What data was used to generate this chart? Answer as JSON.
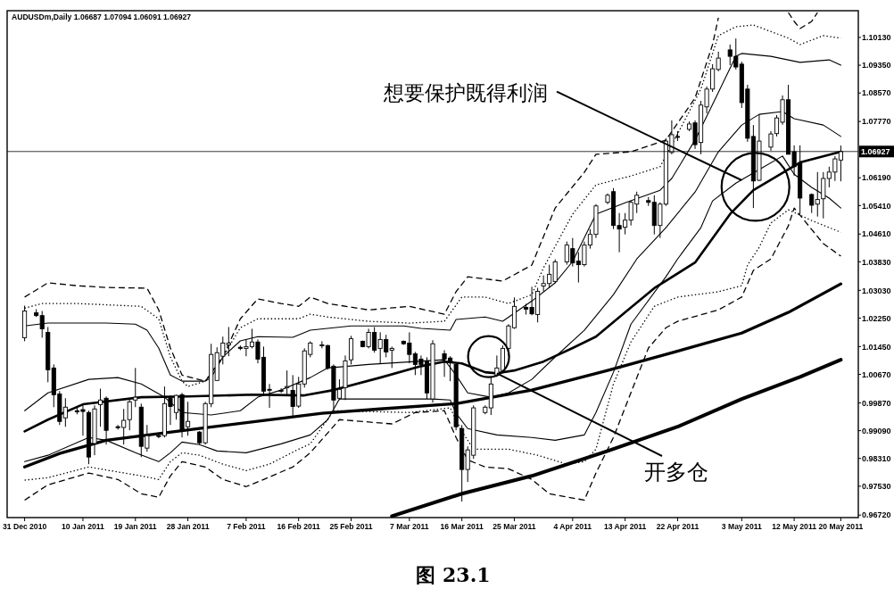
{
  "chart_data": {
    "type": "candlestick",
    "title": "AUDUSDm,Daily 1.06687 1.07094 1.06091 1.06927",
    "color": "#000000",
    "x": [
      "2010-12-31",
      "2011-01-02",
      "2011-01-03",
      "2011-01-04",
      "2011-01-05",
      "2011-01-06",
      "2011-01-07",
      "2011-01-09",
      "2011-01-10",
      "2011-01-11",
      "2011-01-12",
      "2011-01-13",
      "2011-01-14",
      "2011-01-16",
      "2011-01-17",
      "2011-01-18",
      "2011-01-19",
      "2011-01-20",
      "2011-01-21",
      "2011-01-23",
      "2011-01-24",
      "2011-01-25",
      "2011-01-26",
      "2011-01-27",
      "2011-01-28",
      "2011-01-30",
      "2011-01-31",
      "2011-02-01",
      "2011-02-02",
      "2011-02-03",
      "2011-02-04",
      "2011-02-06",
      "2011-02-07",
      "2011-02-08",
      "2011-02-09",
      "2011-02-10",
      "2011-02-11",
      "2011-02-13",
      "2011-02-14",
      "2011-02-15",
      "2011-02-16",
      "2011-02-17",
      "2011-02-18",
      "2011-02-20",
      "2011-02-21",
      "2011-02-22",
      "2011-02-23",
      "2011-02-24",
      "2011-02-25",
      "2011-02-27",
      "2011-02-28",
      "2011-03-01",
      "2011-03-02",
      "2011-03-03",
      "2011-03-04",
      "2011-03-06",
      "2011-03-07",
      "2011-03-08",
      "2011-03-09",
      "2011-03-10",
      "2011-03-11",
      "2011-03-13",
      "2011-03-14",
      "2011-03-15",
      "2011-03-16",
      "2011-03-17",
      "2011-03-18",
      "2011-03-20",
      "2011-03-21",
      "2011-03-22",
      "2011-03-23",
      "2011-03-24",
      "2011-03-25",
      "2011-03-27",
      "2011-03-28",
      "2011-03-29",
      "2011-03-30",
      "2011-03-31",
      "2011-04-01",
      "2011-04-03",
      "2011-04-04",
      "2011-04-05",
      "2011-04-06",
      "2011-04-07",
      "2011-04-08",
      "2011-04-10",
      "2011-04-11",
      "2011-04-12",
      "2011-04-13",
      "2011-04-14",
      "2011-04-15",
      "2011-04-17",
      "2011-04-18",
      "2011-04-19",
      "2011-04-20",
      "2011-04-21",
      "2011-04-22",
      "2011-04-24",
      "2011-04-25",
      "2011-04-26",
      "2011-04-27",
      "2011-04-28",
      "2011-04-29",
      "2011-05-01",
      "2011-05-02",
      "2011-05-03",
      "2011-05-04",
      "2011-05-05",
      "2011-05-06",
      "2011-05-08",
      "2011-05-09",
      "2011-05-10",
      "2011-05-11",
      "2011-05-12",
      "2011-05-13",
      "2011-05-15",
      "2011-05-16",
      "2011-05-17",
      "2011-05-18",
      "2011-05-19",
      "2011-05-20"
    ],
    "ohlc": [
      [
        1.017,
        1.026,
        1.016,
        1.0245
      ],
      [
        1.024,
        1.025,
        1.0228,
        1.0232
      ],
      [
        1.0232,
        1.0245,
        1.017,
        1.0195
      ],
      [
        1.0185,
        1.02,
        1.0045,
        1.008
      ],
      [
        1.0085,
        1.0095,
        0.9975,
        1.001
      ],
      [
        1.0012,
        1.002,
        0.9925,
        0.9935
      ],
      [
        0.9945,
        1.0,
        0.992,
        0.9975
      ],
      [
        0.9965,
        0.9975,
        0.9955,
        0.9962
      ],
      [
        0.9968,
        0.9985,
        0.9895,
        0.9963
      ],
      [
        0.996,
        0.9965,
        0.9815,
        0.9835
      ],
      [
        0.9873,
        0.998,
        0.984,
        0.997
      ],
      [
        0.9982,
        1.0027,
        0.992,
        0.9995
      ],
      [
        1.0,
        1.0005,
        0.987,
        0.991
      ],
      [
        0.992,
        0.9925,
        0.9912,
        0.9918
      ],
      [
        0.9918,
        0.997,
        0.987,
        0.9938
      ],
      [
        0.994,
        1.0,
        0.991,
        0.999
      ],
      [
        0.9995,
        1.0085,
        0.9975,
        1.0003
      ],
      [
        0.9975,
        0.9985,
        0.9835,
        0.9865
      ],
      [
        0.986,
        0.9925,
        0.985,
        0.9895
      ],
      [
        0.9895,
        0.99,
        0.9888,
        0.9893
      ],
      [
        0.9895,
        1.0033,
        0.989,
        0.9985
      ],
      [
        1.0,
        1.0008,
        0.9925,
        0.9977
      ],
      [
        0.996,
        1.001,
        0.994,
        1.0008
      ],
      [
        1.001,
        1.0015,
        0.989,
        0.9908
      ],
      [
        0.992,
        0.999,
        0.9895,
        0.9935
      ],
      [
        0.9905,
        0.9908,
        0.987,
        0.9875
      ],
      [
        0.9875,
        0.999,
        0.987,
        0.9985
      ],
      [
        0.9985,
        1.0153,
        0.9975,
        1.0123
      ],
      [
        1.005,
        1.0143,
        1.005,
        1.0128
      ],
      [
        1.0118,
        1.0173,
        1.0095,
        1.0155
      ],
      [
        1.015,
        1.02,
        1.0118,
        1.0155
      ],
      [
        1.0143,
        1.0148,
        1.0135,
        1.014
      ],
      [
        1.014,
        1.0165,
        1.0118,
        1.0145
      ],
      [
        1.0145,
        1.0195,
        1.014,
        1.0158
      ],
      [
        1.0158,
        1.0165,
        1.0098,
        1.011
      ],
      [
        1.0115,
        1.0145,
        1.001,
        1.002
      ],
      [
        1.0025,
        1.004,
        0.9973,
        1.0023
      ],
      [
        1.002,
        1.0028,
        1.0015,
        1.0022
      ],
      [
        1.003,
        1.0078,
        1.001,
        1.0033
      ],
      [
        1.0022,
        1.0065,
        0.995,
        0.9977
      ],
      [
        0.9978,
        1.006,
        0.9973,
        1.004
      ],
      [
        1.004,
        1.014,
        1.003,
        1.0133
      ],
      [
        1.0123,
        1.016,
        1.0115,
        1.0155
      ],
      [
        1.0148,
        1.016,
        1.014,
        1.015
      ],
      [
        1.0148,
        1.015,
        1.008,
        1.0085
      ],
      [
        1.009,
        1.0095,
        0.997,
        0.9995
      ],
      [
        1.0,
        1.0053,
        0.9995,
        1.0025
      ],
      [
        1.003,
        1.012,
        0.9995,
        1.0105
      ],
      [
        1.0108,
        1.0175,
        1.0095,
        1.0167
      ],
      [
        1.016,
        1.0162,
        1.0143,
        1.0145
      ],
      [
        1.0145,
        1.0195,
        1.014,
        1.0185
      ],
      [
        1.0185,
        1.02,
        1.0128,
        1.0135
      ],
      [
        1.014,
        1.0185,
        1.0098,
        1.0165
      ],
      [
        1.0165,
        1.0178,
        1.0115,
        1.013
      ],
      [
        1.0135,
        1.0145,
        1.0085,
        1.014
      ],
      [
        1.016,
        1.0162,
        1.015,
        1.0153
      ],
      [
        1.0155,
        1.0185,
        1.0098,
        1.0123
      ],
      [
        1.0125,
        1.013,
        1.0065,
        1.0095
      ],
      [
        1.011,
        1.012,
        1.0065,
        1.0095
      ],
      [
        1.0105,
        1.0115,
        0.9998,
        1.0015
      ],
      [
        0.9998,
        1.0163,
        0.9988,
        1.0153
      ],
      [
        1.0125,
        1.0135,
        1.006,
        1.011
      ],
      [
        1.0113,
        1.0118,
        1.0048,
        1.01
      ],
      [
        1.0095,
        1.01,
        0.991,
        0.992
      ],
      [
        0.9915,
        0.9925,
        0.971,
        0.98
      ],
      [
        0.98,
        0.9865,
        0.9765,
        0.9855
      ],
      [
        0.984,
        0.998,
        0.983,
        0.9973
      ],
      [
        0.996,
        0.998,
        0.9955,
        0.9975
      ],
      [
        0.9973,
        1.006,
        0.9953,
        1.004
      ],
      [
        1.0065,
        1.012,
        1.006,
        1.0085
      ],
      [
        1.0078,
        1.0148,
        1.007,
        1.014
      ],
      [
        1.014,
        1.0208,
        1.0118,
        1.0203
      ],
      [
        1.0198,
        1.0283,
        1.0195,
        1.0258
      ],
      [
        1.0255,
        1.0265,
        1.0235,
        1.025
      ],
      [
        1.0255,
        1.0313,
        1.0233,
        1.0237
      ],
      [
        1.0235,
        1.031,
        1.0213,
        1.03
      ],
      [
        1.0315,
        1.0345,
        1.03,
        1.0322
      ],
      [
        1.0322,
        1.0375,
        1.031,
        1.0348
      ],
      [
        1.0328,
        1.039,
        1.0323,
        1.0383
      ],
      [
        1.0383,
        1.044,
        1.0375,
        1.043
      ],
      [
        1.042,
        1.045,
        1.037,
        1.038
      ],
      [
        1.0385,
        1.041,
        1.0325,
        1.0375
      ],
      [
        1.0375,
        1.044,
        1.037,
        1.043
      ],
      [
        1.043,
        1.0475,
        1.042,
        1.046
      ],
      [
        1.046,
        1.0545,
        1.045,
        1.054
      ],
      [
        1.055,
        1.0575,
        1.0545,
        1.057
      ],
      [
        1.058,
        1.059,
        1.0475,
        1.0485
      ],
      [
        1.0485,
        1.052,
        1.041,
        1.0475
      ],
      [
        1.048,
        1.052,
        1.046,
        1.05
      ],
      [
        1.05,
        1.0555,
        1.0485,
        1.055
      ],
      [
        1.0545,
        1.058,
        1.052,
        1.057
      ],
      [
        1.0555,
        1.0565,
        1.054,
        1.055
      ],
      [
        1.055,
        1.057,
        1.046,
        1.0485
      ],
      [
        1.0485,
        1.055,
        1.045,
        1.0545
      ],
      [
        1.0545,
        1.073,
        1.054,
        1.0722
      ],
      [
        1.069,
        1.078,
        1.0685,
        1.074
      ],
      [
        1.0735,
        1.075,
        1.0722,
        1.0733
      ],
      [
        1.0755,
        1.0777,
        1.075,
        1.077
      ],
      [
        1.0773,
        1.078,
        1.07,
        1.0712
      ],
      [
        1.0718,
        1.0835,
        1.0685,
        1.0823
      ],
      [
        1.0818,
        1.0875,
        1.08,
        1.0868
      ],
      [
        1.0868,
        1.0938,
        1.086,
        1.0925
      ],
      [
        1.0923,
        1.0973,
        1.0918,
        1.0955
      ],
      [
        1.0978,
        1.0993,
        1.0935,
        1.096
      ],
      [
        1.096,
        1.101,
        1.0923,
        1.093
      ],
      [
        1.0938,
        1.0945,
        1.0815,
        1.083
      ],
      [
        1.0868,
        1.088,
        1.072,
        1.073
      ],
      [
        1.0735,
        1.0767,
        1.0534,
        1.061
      ],
      [
        1.0612,
        1.0797,
        1.061,
        1.0722
      ],
      [
        1.0705,
        1.075,
        1.0695,
        1.0742
      ],
      [
        1.0743,
        1.0795,
        1.0735,
        1.0787
      ],
      [
        1.0775,
        1.085,
        1.0768,
        1.0838
      ],
      [
        1.0838,
        1.088,
        1.0685,
        1.0685
      ],
      [
        1.0692,
        1.071,
        1.0625,
        1.065
      ],
      [
        1.066,
        1.071,
        1.0517,
        1.0562
      ],
      [
        1.0572,
        1.0575,
        1.052,
        1.0542
      ],
      [
        1.0545,
        1.0635,
        1.051,
        1.0558
      ],
      [
        1.056,
        1.0635,
        1.0505,
        1.0617
      ],
      [
        1.0617,
        1.065,
        1.0592,
        1.0635
      ],
      [
        1.0635,
        1.068,
        1.061,
        1.0672
      ],
      [
        1.06687,
        1.07094,
        1.06091,
        1.06927
      ]
    ],
    "series": [
      {
        "type": "line",
        "color": "#000000",
        "line_style": "dashed",
        "x": [
          "2010-12-31",
          "2011-01-04",
          "2011-01-09",
          "2011-01-14",
          "2011-01-21",
          "2011-01-23",
          "2011-01-25",
          "2011-01-27",
          "2011-01-31",
          "2011-02-03",
          "2011-02-06",
          "2011-02-09",
          "2011-02-13",
          "2011-02-16",
          "2011-02-18",
          "2011-02-21",
          "2011-02-28",
          "2011-03-07",
          "2011-03-13",
          "2011-03-15",
          "2011-03-17",
          "2011-03-23",
          "2011-03-28",
          "2011-04-01",
          "2011-04-06",
          "2011-04-08",
          "2011-04-14",
          "2011-04-20",
          "2011-04-25",
          "2011-04-28",
          "2011-04-29",
          "2011-05-01",
          "2011-05-11",
          "2011-05-12",
          "2011-05-13",
          "2011-05-15",
          "2011-05-16"
        ],
        "values": [
          1.0284,
          1.0324,
          1.0316,
          1.0311,
          1.0309,
          1.0248,
          1.0141,
          1.0065,
          1.0048,
          1.0116,
          1.0223,
          1.0279,
          1.0266,
          1.0258,
          1.0284,
          1.0266,
          1.0248,
          1.0258,
          1.0236,
          1.0299,
          1.0341,
          1.0329,
          1.0374,
          1.0534,
          1.0634,
          1.0685,
          1.0692,
          1.0725,
          1.0843,
          1.0993,
          1.1068,
          null,
          1.1083,
          1.1058,
          1.1038,
          1.1058,
          1.1083
        ]
      },
      {
        "type": "line",
        "color": "#000000",
        "line_style": "dotted",
        "x": [
          "2010-12-31",
          "2011-01-03",
          "2011-01-09",
          "2011-01-20",
          "2011-01-23",
          "2011-01-25",
          "2011-01-27",
          "2011-01-28",
          "2011-01-31",
          "2011-02-03",
          "2011-02-06",
          "2011-02-09",
          "2011-02-16",
          "2011-02-18",
          "2011-02-21",
          "2011-02-28",
          "2011-03-07",
          "2011-03-13",
          "2011-03-16",
          "2011-03-20",
          "2011-03-24",
          "2011-03-28",
          "2011-03-30",
          "2011-04-04",
          "2011-04-08",
          "2011-04-14",
          "2011-04-19",
          "2011-04-22",
          "2011-04-26",
          "2011-04-29",
          "2011-05-02",
          "2011-05-05",
          "2011-05-11",
          "2011-05-13",
          "2011-05-17",
          "2011-05-20"
        ],
        "values": [
          1.0253,
          1.0266,
          1.0266,
          1.0258,
          1.0223,
          1.0116,
          1.0048,
          1.0033,
          1.0048,
          1.0116,
          1.0198,
          1.0223,
          1.0223,
          1.0236,
          1.0228,
          1.0216,
          1.0211,
          1.0216,
          1.0284,
          1.0284,
          1.0266,
          1.0291,
          1.0366,
          1.0517,
          1.0599,
          1.0624,
          1.065,
          1.0742,
          1.0868,
          1.1018,
          1.1043,
          1.1048,
          1.1011,
          1.0993,
          1.1018,
          1.1011
        ]
      },
      {
        "type": "line",
        "color": "#000000",
        "line_style": "solid",
        "x": [
          "2010-12-31",
          "2011-01-04",
          "2011-01-14",
          "2011-01-19",
          "2011-01-21",
          "2011-01-23",
          "2011-01-25",
          "2011-01-27",
          "2011-01-31",
          "2011-02-01",
          "2011-02-03",
          "2011-02-06",
          "2011-02-09",
          "2011-02-15",
          "2011-02-18",
          "2011-02-25",
          "2011-03-06",
          "2011-03-09",
          "2011-03-14",
          "2011-03-15",
          "2011-03-20",
          "2011-03-23",
          "2011-03-28",
          "2011-04-01",
          "2011-04-04",
          "2011-04-08",
          "2011-04-13",
          "2011-04-19",
          "2011-04-21",
          "2011-04-25",
          "2011-04-28",
          "2011-05-02",
          "2011-05-03",
          "2011-05-08",
          "2011-05-13",
          "2011-05-18",
          "2011-05-20"
        ],
        "values": [
          1.0203,
          1.0211,
          1.0211,
          1.0208,
          1.0191,
          1.0141,
          1.0065,
          1.0048,
          1.0048,
          1.0058,
          1.0116,
          1.0161,
          1.0173,
          1.0171,
          1.0191,
          1.0203,
          1.0203,
          1.0196,
          1.0191,
          1.0221,
          1.0228,
          1.0216,
          1.0273,
          1.0324,
          1.0384,
          1.0517,
          1.0549,
          1.0584,
          1.0617,
          1.0725,
          1.0825,
          1.096,
          1.0968,
          1.096,
          1.0943,
          1.095,
          1.0935
        ]
      },
      {
        "type": "line",
        "color": "#000000",
        "line_style": "solid",
        "x": [
          "2010-12-31",
          "2011-01-04",
          "2011-01-11",
          "2011-01-16",
          "2011-01-20",
          "2011-01-24",
          "2011-01-27",
          "2011-02-01",
          "2011-02-06",
          "2011-02-09",
          "2011-02-13",
          "2011-02-18",
          "2011-02-21",
          "2011-02-28",
          "2011-03-08",
          "2011-03-13",
          "2011-03-15",
          "2011-03-17",
          "2011-03-21",
          "2011-03-24",
          "2011-03-28",
          "2011-04-01",
          "2011-04-06",
          "2011-04-11",
          "2011-04-15",
          "2011-04-20",
          "2011-04-25",
          "2011-04-29",
          "2011-05-03",
          "2011-05-06",
          "2011-05-10",
          "2011-05-12",
          "2011-05-17",
          "2011-05-20"
        ],
        "values": [
          0.9965,
          1.0015,
          1.0053,
          1.0058,
          1.004,
          1.0003,
          0.996,
          0.9953,
          0.9965,
          1.0003,
          1.0023,
          1.0058,
          1.0085,
          1.0095,
          1.0103,
          1.0108,
          1.0065,
          1.0015,
          1.0003,
          1.0015,
          1.0053,
          1.0116,
          1.0191,
          1.0291,
          1.0391,
          1.0479,
          1.0579,
          1.0692,
          1.0767,
          1.0797,
          1.0805,
          1.0785,
          1.0767,
          1.0735
        ]
      },
      {
        "type": "line",
        "color": "#000000",
        "line_style": "solid",
        "x": [
          "2010-12-31",
          "2011-01-04",
          "2011-01-11",
          "2011-01-14",
          "2011-01-19",
          "2011-01-23",
          "2011-01-25",
          "2011-01-27",
          "2011-01-30",
          "2011-02-02",
          "2011-02-07",
          "2011-02-13",
          "2011-02-18",
          "2011-02-21",
          "2011-02-23",
          "2011-03-11",
          "2011-03-14",
          "2011-03-15",
          "2011-03-17",
          "2011-03-22",
          "2011-03-28",
          "2011-04-01",
          "2011-04-06",
          "2011-04-08",
          "2011-04-11",
          "2011-04-14",
          "2011-04-20",
          "2011-04-22",
          "2011-04-26",
          "2011-04-28",
          "2011-05-02",
          "2011-05-06",
          "2011-05-10",
          "2011-05-12",
          "2011-05-15",
          "2011-05-18",
          "2011-05-20"
        ],
        "values": [
          0.9822,
          0.984,
          0.989,
          0.9882,
          0.9847,
          0.9822,
          0.9847,
          0.9877,
          0.987,
          0.9852,
          0.9847,
          0.9872,
          0.9897,
          0.994,
          0.9998,
          0.9998,
          0.9995,
          0.9958,
          0.9915,
          0.9897,
          0.989,
          0.9882,
          0.9897,
          0.996,
          1.0073,
          1.0208,
          1.0341,
          1.0391,
          1.0479,
          1.0554,
          1.0604,
          1.0642,
          1.068,
          1.0629,
          1.0592,
          1.0562,
          1.0534
        ]
      },
      {
        "type": "line",
        "color": "#000000",
        "line_style": "dotted",
        "x": [
          "2010-12-31",
          "2011-01-04",
          "2011-01-11",
          "2011-01-20",
          "2011-01-23",
          "2011-01-25",
          "2011-01-27",
          "2011-01-30",
          "2011-02-03",
          "2011-02-07",
          "2011-02-11",
          "2011-02-16",
          "2011-02-18",
          "2011-02-22",
          "2011-03-07",
          "2011-03-14",
          "2011-03-16",
          "2011-03-18",
          "2011-03-24",
          "2011-03-29",
          "2011-04-03",
          "2011-04-06",
          "2011-04-08",
          "2011-04-11",
          "2011-04-14",
          "2011-04-18",
          "2011-04-22",
          "2011-04-29",
          "2011-05-03",
          "2011-05-04",
          "2011-05-06",
          "2011-05-08",
          "2011-05-11",
          "2011-05-15",
          "2011-05-20"
        ],
        "values": [
          0.977,
          0.9777,
          0.9807,
          0.9782,
          0.9772,
          0.9822,
          0.9847,
          0.984,
          0.9815,
          0.9797,
          0.9815,
          0.9857,
          0.9872,
          0.9965,
          0.996,
          0.9973,
          0.9907,
          0.9857,
          0.9857,
          0.984,
          0.9815,
          0.9822,
          0.9857,
          1.004,
          1.0158,
          1.0258,
          1.0284,
          1.0299,
          1.0316,
          1.0374,
          1.0424,
          1.0492,
          1.0529,
          1.0499,
          1.0466
        ]
      },
      {
        "type": "line",
        "color": "#000000",
        "line_style": "dashed",
        "x": [
          "2010-12-31",
          "2011-01-04",
          "2011-01-11",
          "2011-01-16",
          "2011-01-20",
          "2011-01-23",
          "2011-01-25",
          "2011-01-27",
          "2011-01-31",
          "2011-02-03",
          "2011-02-07",
          "2011-02-10",
          "2011-02-15",
          "2011-02-18",
          "2011-02-23",
          "2011-03-04",
          "2011-03-08",
          "2011-03-13",
          "2011-03-15",
          "2011-03-17",
          "2011-03-20",
          "2011-03-24",
          "2011-03-28",
          "2011-03-31",
          "2011-04-06",
          "2011-04-08",
          "2011-04-11",
          "2011-04-17",
          "2011-04-20",
          "2011-04-22",
          "2011-04-29",
          "2011-05-03",
          "2011-05-05",
          "2011-05-08",
          "2011-05-11",
          "2011-05-12",
          "2011-05-15",
          "2011-05-17",
          "2011-05-20"
        ],
        "values": [
          0.9714,
          0.9757,
          0.979,
          0.9772,
          0.9732,
          0.9722,
          0.9782,
          0.9822,
          0.9807,
          0.9772,
          0.9752,
          0.9772,
          0.9807,
          0.9847,
          0.994,
          0.9928,
          0.996,
          0.9965,
          0.989,
          0.9827,
          0.9807,
          0.9802,
          0.9772,
          0.9732,
          0.9714,
          0.979,
          0.989,
          1.0141,
          1.0198,
          1.0216,
          1.0248,
          1.0284,
          1.0359,
          1.0391,
          1.0484,
          1.0534,
          1.0474,
          1.0434,
          1.0399
        ]
      },
      {
        "type": "line",
        "color": "#000000",
        "line_style": "solid",
        "x": [
          "2010-12-31",
          "2011-01-04",
          "2011-01-10",
          "2011-01-20",
          "2011-01-28",
          "2011-02-08",
          "2011-02-17",
          "2011-02-22",
          "2011-03-02",
          "2011-03-09",
          "2011-03-13",
          "2011-03-16",
          "2011-03-20",
          "2011-03-22",
          "2011-03-25",
          "2011-03-30",
          "2011-04-04",
          "2011-04-08",
          "2011-04-13",
          "2011-04-18",
          "2011-04-25",
          "2011-05-01",
          "2011-05-05",
          "2011-05-13",
          "2011-05-20"
        ],
        "values": [
          0.9907,
          0.994,
          0.9983,
          1.0003,
          1.0005,
          1.001,
          1.0008,
          1.0023,
          1.0058,
          1.009,
          1.0103,
          1.0098,
          1.0073,
          1.007,
          1.0078,
          1.0103,
          1.0141,
          1.0173,
          1.0241,
          1.0309,
          1.0381,
          1.0517,
          1.0584,
          1.0662,
          1.0692
        ]
      },
      {
        "type": "line",
        "color": "#000000",
        "line_style": "solid",
        "x": [
          "2010-12-31",
          "2011-01-06",
          "2011-01-14",
          "2011-01-30",
          "2011-02-20",
          "2011-03-02",
          "2011-03-15",
          "2011-03-28",
          "2011-04-10",
          "2011-04-20",
          "2011-05-03",
          "2011-05-11",
          "2011-05-20"
        ],
        "values": [
          0.9807,
          0.9845,
          0.9882,
          0.9915,
          0.9958,
          0.997,
          0.9985,
          1.0023,
          1.0078,
          1.0123,
          1.0183,
          1.0241,
          1.0321
        ]
      },
      {
        "type": "line",
        "color": "#000000",
        "line_style": "solid",
        "x": [
          "2011-03-04",
          "2011-03-16",
          "2011-03-28",
          "2011-04-10",
          "2011-04-22",
          "2011-05-03",
          "2011-05-13",
          "2011-05-20"
        ],
        "values": [
          0.9669,
          0.9732,
          0.9782,
          0.9852,
          0.992,
          0.9998,
          1.006,
          1.0108
        ]
      }
    ],
    "xlim": [
      "2010-12-28",
      "2011-05-23"
    ],
    "xticks": [
      {
        "value": "2010-12-31",
        "label": "31 Dec 2010"
      },
      {
        "value": "2011-01-10",
        "label": "10 Jan 2011"
      },
      {
        "value": "2011-01-19",
        "label": "19 Jan 2011"
      },
      {
        "value": "2011-01-28",
        "label": "28 Jan 2011"
      },
      {
        "value": "2011-02-07",
        "label": "7 Feb 2011"
      },
      {
        "value": "2011-02-16",
        "label": "16 Feb 2011"
      },
      {
        "value": "2011-02-25",
        "label": "25 Feb 2011"
      },
      {
        "value": "2011-03-07",
        "label": "7 Mar 2011"
      },
      {
        "value": "2011-03-16",
        "label": "16 Mar 2011"
      },
      {
        "value": "2011-03-25",
        "label": "25 Mar 2011"
      },
      {
        "value": "2011-04-04",
        "label": "4 Apr 2011"
      },
      {
        "value": "2011-04-13",
        "label": "13 Apr 2011"
      },
      {
        "value": "2011-04-22",
        "label": "22 Apr 2011"
      },
      {
        "value": "2011-05-03",
        "label": "3 May 2011"
      },
      {
        "value": "2011-05-12",
        "label": "12 May 2011"
      },
      {
        "value": "2011-05-20",
        "label": "20 May 2011"
      }
    ],
    "ylim": [
      0.9665,
      1.1088
    ],
    "yticks": [
      {
        "value": 1.1013,
        "label": "1.10130"
      },
      {
        "value": 1.0935,
        "label": "1.09350"
      },
      {
        "value": 1.0857,
        "label": "1.08570"
      },
      {
        "value": 1.0777,
        "label": "1.07770"
      },
      {
        "value": 1.0619,
        "label": "1.06190"
      },
      {
        "value": 1.0541,
        "label": "1.05410"
      },
      {
        "value": 1.0461,
        "label": "1.04610"
      },
      {
        "value": 1.0383,
        "label": "1.03830"
      },
      {
        "value": 1.0303,
        "label": "1.03030"
      },
      {
        "value": 1.0225,
        "label": "1.02250"
      },
      {
        "value": 1.0145,
        "label": "1.01450"
      },
      {
        "value": 1.0067,
        "label": "1.00670"
      },
      {
        "value": 0.9987,
        "label": "0.99870"
      },
      {
        "value": 0.9909,
        "label": "0.99090"
      },
      {
        "value": 0.9831,
        "label": "0.98310"
      },
      {
        "value": 0.9753,
        "label": "0.97530"
      },
      {
        "value": 0.9672,
        "label": "0.96720"
      }
    ],
    "ref_lines": [
      {
        "axis": "y",
        "value": 1.06927,
        "label": "1.06927",
        "color": "#000000"
      }
    ],
    "annotations": [
      {
        "text": "想要保护既得利润",
        "x": "2011-05-03",
        "y": 1.0612
      },
      {
        "text": "开多仓",
        "x": "2011-03-22",
        "y": 1.007
      },
      "图 23.1"
    ]
  }
}
